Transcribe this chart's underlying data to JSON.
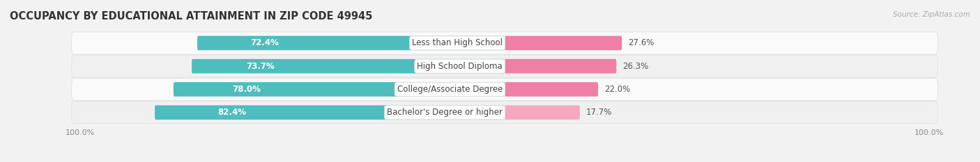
{
  "title": "OCCUPANCY BY EDUCATIONAL ATTAINMENT IN ZIP CODE 49945",
  "source": "Source: ZipAtlas.com",
  "categories": [
    "Less than High School",
    "High School Diploma",
    "College/Associate Degree",
    "Bachelor's Degree or higher"
  ],
  "owner_values": [
    72.4,
    73.7,
    78.0,
    82.4
  ],
  "renter_values": [
    27.6,
    26.3,
    22.0,
    17.7
  ],
  "owner_color": "#4dbdbe",
  "renter_color": "#f07fa8",
  "renter_color_last": "#f5a8c0",
  "bg_color": "#f2f2f2",
  "row_colors": [
    "#ffffff",
    "#f5f5f5",
    "#ffffff",
    "#f5f5f5"
  ],
  "title_fontsize": 10.5,
  "label_fontsize": 8.5,
  "value_fontsize": 8.5,
  "tick_fontsize": 8,
  "legend_fontsize": 8.5,
  "bar_height": 0.62,
  "xlim": 100
}
